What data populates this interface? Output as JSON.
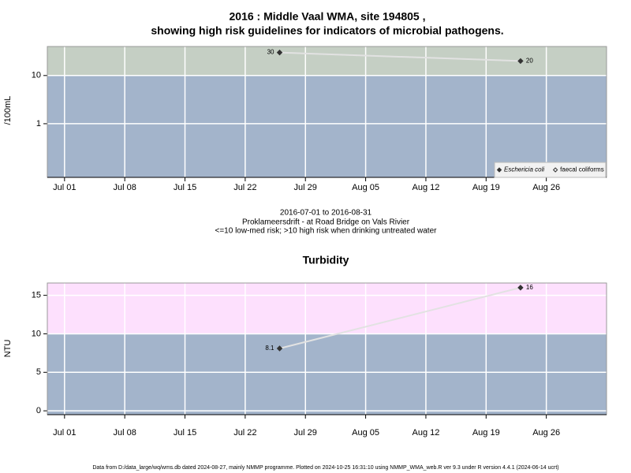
{
  "chart_data": [
    {
      "type": "line",
      "title": [
        "2016 : Middle Vaal WMA, site 194805 ,",
        "showing high risk guidelines for indicators of microbial pathogens."
      ],
      "subtitle": [
        "2016-07-01 to 2016-08-31",
        "Proklameersdrift - at Road Bridge on Vals Rivier",
        "<=10 low-med risk; >10 high risk when drinking untreated water"
      ],
      "ylabel": "/100mL",
      "log_y": true,
      "x": [
        "Jul 26",
        "Aug 23"
      ],
      "xlim": [
        "Jun 29",
        "Sep 02"
      ],
      "xticks": [
        "Jul 01",
        "Jul 08",
        "Jul 15",
        "Jul 22",
        "Jul 29",
        "Aug 05",
        "Aug 12",
        "Aug 19",
        "Aug 26"
      ],
      "ylim": [
        0.077,
        40
      ],
      "yticks": [
        1,
        10
      ],
      "threshold": 10,
      "above_color": "#c5cfc4",
      "below_color": "#a3b4cb",
      "line_color": "#e2e2e2",
      "grid": true,
      "legend": "bottom right",
      "series": [
        {
          "name": "Eschericia coli",
          "color": "#333333",
          "marker": "filled",
          "values": [
            30,
            20
          ]
        },
        {
          "name": "faecal coliforms",
          "color": "#333333",
          "marker": "open",
          "values": [
            null,
            null
          ]
        }
      ]
    },
    {
      "type": "line",
      "title": "Turbidity",
      "ylabel": "NTU",
      "log_y": false,
      "x": [
        "Jul 26",
        "Aug 23"
      ],
      "xlim": [
        "Jun 29",
        "Sep 02"
      ],
      "xticks": [
        "Jul 01",
        "Jul 08",
        "Jul 15",
        "Jul 22",
        "Jul 29",
        "Aug 05",
        "Aug 12",
        "Aug 19",
        "Aug 26"
      ],
      "ylim": [
        -0.5,
        16.6
      ],
      "yticks": [
        0,
        5,
        10,
        15
      ],
      "threshold": 10,
      "above_color": "#fde0fd",
      "below_color": "#a3b4cb",
      "line_color": "#e2e2e2",
      "grid": true,
      "series": [
        {
          "color": "#333333",
          "marker": "filled",
          "values": [
            8.1,
            16
          ]
        }
      ]
    }
  ],
  "footer": "Data from D:/data_large/wq/wms.db dated 2024-08-27, mainly NMMP programme. Plotted on 2024-10-25 16:31:10 using NMMP_WMA_web.R ver 9.3 under R version 4.4.1 (2024-06-14 ucrt)"
}
